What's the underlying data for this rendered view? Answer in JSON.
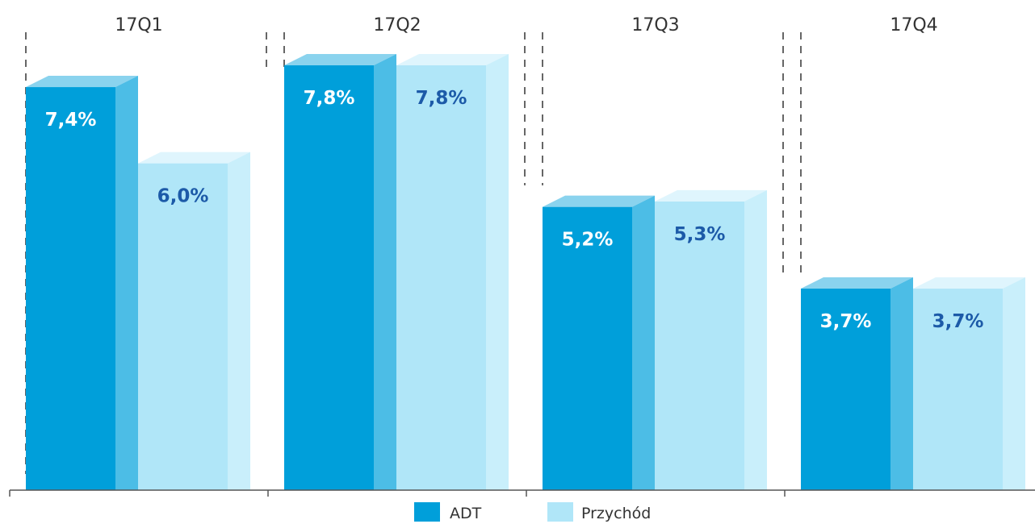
{
  "chart_data": {
    "type": "bar",
    "categories": [
      "17Q1",
      "17Q2",
      "17Q3",
      "17Q4"
    ],
    "series": [
      {
        "name": "ADT",
        "values": [
          7.4,
          7.8,
          5.2,
          3.7
        ],
        "labels": [
          "7,4%",
          "7,8%",
          "5,2%",
          "3,7%"
        ]
      },
      {
        "name": "Przychód",
        "values": [
          6.0,
          7.8,
          5.3,
          3.7
        ],
        "labels": [
          "6,0%",
          "7,8%",
          "5,3%",
          "3,7%"
        ]
      }
    ],
    "ylim": [
      0,
      8.2
    ],
    "grid": false,
    "legend_position": "bottom-center",
    "colors": {
      "adt_front": "#009fda",
      "adt_side": "#4cbde6",
      "adt_top": "#8ad3ee",
      "adt_label": "#ffffff",
      "rev_front": "#b0e6f8",
      "rev_side": "#c9effb",
      "rev_top": "#dff5fd",
      "rev_label": "#1c5aa8",
      "axis": "#555555",
      "divider": "#333333"
    }
  },
  "legend": {
    "adt": "ADT",
    "revenue": "Przychód"
  }
}
